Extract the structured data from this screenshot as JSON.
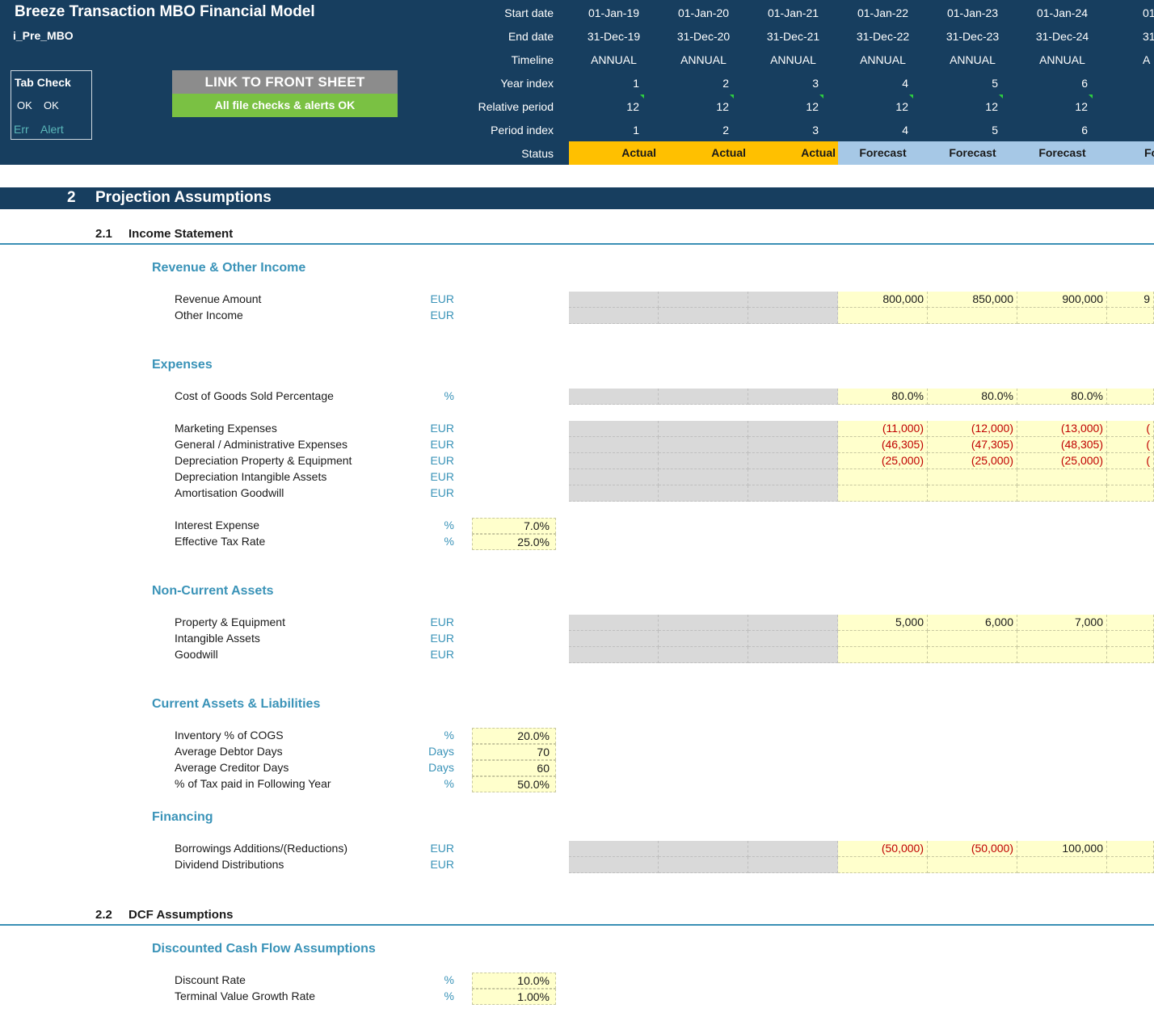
{
  "header": {
    "title": "Breeze Transaction MBO Financial Model",
    "sheet_name": "i_Pre_MBO",
    "tab_check": {
      "title": "Tab Check",
      "ok1": "OK",
      "ok2": "OK",
      "err": "Err",
      "alert": "Alert"
    },
    "link_button": "LINK TO FRONT SHEET",
    "checks_status": "All file checks & alerts OK",
    "row_labels": {
      "start_date": "Start date",
      "end_date": "End date",
      "timeline": "Timeline",
      "year_index": "Year index",
      "relative_period": "Relative period",
      "period_index": "Period index",
      "status": "Status"
    },
    "columns": [
      {
        "start": "01-Jan-19",
        "end": "31-Dec-19",
        "timeline": "ANNUAL",
        "year_index": "1",
        "relative_period": "12",
        "period_index": "1",
        "status": "Actual"
      },
      {
        "start": "01-Jan-20",
        "end": "31-Dec-20",
        "timeline": "ANNUAL",
        "year_index": "2",
        "relative_period": "12",
        "period_index": "2",
        "status": "Actual"
      },
      {
        "start": "01-Jan-21",
        "end": "31-Dec-21",
        "timeline": "ANNUAL",
        "year_index": "3",
        "relative_period": "12",
        "period_index": "3",
        "status": "Actual"
      },
      {
        "start": "01-Jan-22",
        "end": "31-Dec-22",
        "timeline": "ANNUAL",
        "year_index": "4",
        "relative_period": "12",
        "period_index": "4",
        "status": "Forecast"
      },
      {
        "start": "01-Jan-23",
        "end": "31-Dec-23",
        "timeline": "ANNUAL",
        "year_index": "5",
        "relative_period": "12",
        "period_index": "5",
        "status": "Forecast"
      },
      {
        "start": "01-Jan-24",
        "end": "31-Dec-24",
        "timeline": "ANNUAL",
        "year_index": "6",
        "relative_period": "12",
        "period_index": "6",
        "status": "Forecast"
      },
      {
        "start": "01",
        "end": "31-",
        "timeline": "A",
        "year_index": "",
        "relative_period": "",
        "period_index": "",
        "status": "Fo"
      }
    ]
  },
  "section": {
    "number": "2",
    "title": "Projection Assumptions"
  },
  "subsections": [
    {
      "number": "2.1",
      "title": "Income Statement"
    },
    {
      "number": "2.2",
      "title": "DCF Assumptions"
    }
  ],
  "groups": {
    "revenue": "Revenue & Other Income",
    "expenses": "Expenses",
    "noncurrent": "Non-Current Assets",
    "current": "Current Assets & Liabilities",
    "financing": "Financing",
    "dcf": "Discounted Cash Flow Assumptions"
  },
  "rows": {
    "revenue_amount": {
      "label": "Revenue Amount",
      "unit": "EUR",
      "values": [
        "800,000",
        "850,000",
        "900,000",
        "9"
      ]
    },
    "other_income": {
      "label": "Other Income",
      "unit": "EUR"
    },
    "cogs_pct": {
      "label": "Cost of Goods Sold Percentage",
      "unit": "%",
      "values": [
        "80.0%",
        "80.0%",
        "80.0%",
        ""
      ]
    },
    "marketing": {
      "label": "Marketing Expenses",
      "unit": "EUR",
      "values": [
        "(11,000)",
        "(12,000)",
        "(13,000)",
        "("
      ]
    },
    "gen_admin": {
      "label": "General / Administrative Expenses",
      "unit": "EUR",
      "values": [
        "(46,305)",
        "(47,305)",
        "(48,305)",
        "("
      ]
    },
    "dep_ppe": {
      "label": "Depreciation Property & Equipment",
      "unit": "EUR",
      "values": [
        "(25,000)",
        "(25,000)",
        "(25,000)",
        "("
      ]
    },
    "dep_intangible": {
      "label": "Depreciation Intangible Assets",
      "unit": "EUR"
    },
    "amort_goodwill": {
      "label": "Amortisation Goodwill",
      "unit": "EUR"
    },
    "interest_expense": {
      "label": "Interest Expense",
      "unit": "%",
      "value": "7.0%"
    },
    "effective_tax": {
      "label": "Effective Tax Rate",
      "unit": "%",
      "value": "25.0%"
    },
    "ppe": {
      "label": "Property & Equipment",
      "unit": "EUR",
      "values": [
        "5,000",
        "6,000",
        "7,000",
        ""
      ]
    },
    "intangible": {
      "label": "Intangible Assets",
      "unit": "EUR"
    },
    "goodwill": {
      "label": "Goodwill",
      "unit": "EUR"
    },
    "inventory": {
      "label": "Inventory % of COGS",
      "unit": "%",
      "value": "20.0%"
    },
    "debtor_days": {
      "label": "Average Debtor Days",
      "unit": "Days",
      "value": "70"
    },
    "creditor_days": {
      "label": "Average Creditor Days",
      "unit": "Days",
      "value": "60"
    },
    "tax_paid": {
      "label": "% of Tax paid in Following Year",
      "unit": "%",
      "value": "50.0%"
    },
    "borrowings": {
      "label": "Borrowings Additions/(Reductions)",
      "unit": "EUR",
      "values": [
        "(50,000)",
        "(50,000)",
        "100,000",
        ""
      ]
    },
    "dividends": {
      "label": "Dividend Distributions",
      "unit": "EUR"
    },
    "discount_rate": {
      "label": "Discount Rate",
      "unit": "%",
      "value": "10.0%"
    },
    "terminal_growth": {
      "label": "Terminal Value Growth Rate",
      "unit": "%",
      "value": "1.00%"
    }
  }
}
